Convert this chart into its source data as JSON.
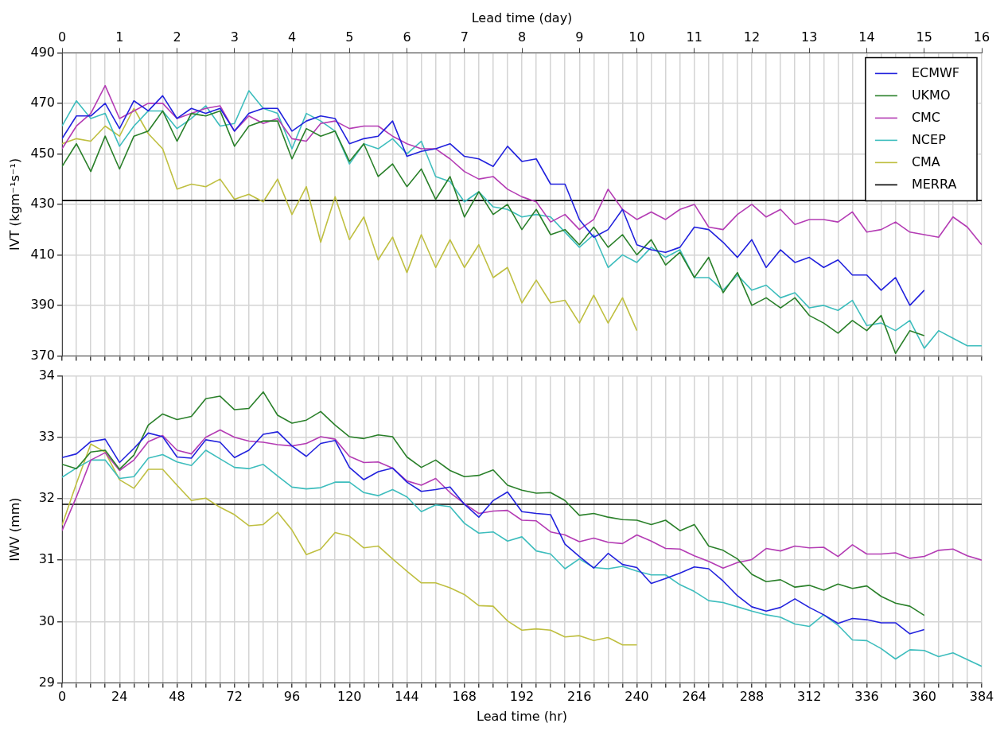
{
  "chart_data": [
    {
      "type": "line",
      "ylabel": "IVT (kgm⁻¹s⁻¹)",
      "x2label": "Lead time (day)",
      "x2lim": [
        0,
        16
      ],
      "x2ticks": [
        0,
        1,
        2,
        3,
        4,
        5,
        6,
        7,
        8,
        9,
        10,
        11,
        12,
        13,
        14,
        15,
        16
      ],
      "xlim": [
        0,
        384
      ],
      "ylim": [
        370,
        490
      ],
      "yticks": [
        370,
        390,
        410,
        430,
        450,
        470,
        490
      ],
      "grid": true,
      "legend": "top right",
      "tick_labels": "y",
      "xticks": [
        0,
        {
          "value": 6,
          "label": null
        },
        {
          "value": 12,
          "label": null
        },
        {
          "value": 18,
          "label": null
        },
        24,
        {
          "value": 30,
          "label": null
        },
        {
          "value": 36,
          "label": null
        },
        {
          "value": 42,
          "label": null
        },
        48,
        {
          "value": 54,
          "label": null
        },
        {
          "value": 60,
          "label": null
        },
        {
          "value": 66,
          "label": null
        },
        72,
        {
          "value": 78,
          "label": null
        },
        {
          "value": 84,
          "label": null
        },
        {
          "value": 90,
          "label": null
        },
        96,
        {
          "value": 102,
          "label": null
        },
        {
          "value": 108,
          "label": null
        },
        {
          "value": 114,
          "label": null
        },
        120,
        {
          "value": 126,
          "label": null
        },
        {
          "value": 132,
          "label": null
        },
        {
          "value": 138,
          "label": null
        },
        144,
        {
          "value": 150,
          "label": null
        },
        {
          "value": 156,
          "label": null
        },
        {
          "value": 162,
          "label": null
        },
        168,
        {
          "value": 174,
          "label": null
        },
        {
          "value": 180,
          "label": null
        },
        {
          "value": 186,
          "label": null
        },
        192,
        {
          "value": 198,
          "label": null
        },
        {
          "value": 204,
          "label": null
        },
        {
          "value": 210,
          "label": null
        },
        216,
        {
          "value": 222,
          "label": null
        },
        {
          "value": 228,
          "label": null
        },
        {
          "value": 234,
          "label": null
        },
        240,
        {
          "value": 246,
          "label": null
        },
        {
          "value": 252,
          "label": null
        },
        {
          "value": 258,
          "label": null
        },
        264,
        {
          "value": 270,
          "label": null
        },
        {
          "value": 276,
          "label": null
        },
        {
          "value": 282,
          "label": null
        },
        288,
        {
          "value": 294,
          "label": null
        },
        {
          "value": 300,
          "label": null
        },
        {
          "value": 306,
          "label": null
        },
        312,
        {
          "value": 318,
          "label": null
        },
        {
          "value": 324,
          "label": null
        },
        {
          "value": 330,
          "label": null
        },
        336,
        {
          "value": 342,
          "label": null
        },
        {
          "value": 348,
          "label": null
        },
        {
          "value": 354,
          "label": null
        },
        360,
        {
          "value": 366,
          "label": null
        },
        {
          "value": 372,
          "label": null
        },
        {
          "value": 378,
          "label": null
        },
        384
      ],
      "x": [
        0,
        6,
        12,
        18,
        24,
        30,
        36,
        42,
        48,
        54,
        60,
        66,
        72,
        78,
        84,
        90,
        96,
        102,
        108,
        114,
        120,
        126,
        132,
        138,
        144,
        150,
        156,
        162,
        168,
        174,
        180,
        186,
        192,
        198,
        204,
        210,
        216,
        222,
        228,
        234,
        240,
        246,
        252,
        258,
        264,
        270,
        276,
        282,
        288,
        294,
        300,
        306,
        312,
        318,
        324,
        330,
        336,
        342,
        348,
        354,
        360,
        366,
        372,
        378,
        384
      ],
      "series": [
        {
          "name": "ECMWF",
          "color": "#2222dd",
          "x": [
            0,
            6,
            12,
            18,
            24,
            30,
            36,
            42,
            48,
            54,
            60,
            66,
            72,
            78,
            84,
            90,
            96,
            102,
            108,
            114,
            120,
            126,
            132,
            138,
            144,
            150,
            156,
            162,
            168,
            174,
            180,
            186,
            192,
            198,
            204,
            210,
            216,
            222,
            228,
            234,
            240,
            246,
            252,
            258,
            264,
            270,
            276,
            282,
            288,
            294,
            300,
            306,
            312,
            318,
            324,
            330,
            336,
            342,
            348,
            354,
            360
          ],
          "values": [
            456,
            465,
            465,
            470,
            460,
            471,
            467,
            473,
            464,
            468,
            466,
            468,
            459,
            466,
            468,
            468,
            459,
            463,
            465,
            464,
            454,
            456,
            457,
            463,
            449,
            451,
            452,
            454,
            449,
            448,
            445,
            453,
            447,
            448,
            438,
            438,
            424,
            417,
            420,
            428,
            414,
            412,
            411,
            413,
            421,
            420,
            415,
            409,
            416,
            405,
            412,
            407,
            409,
            405,
            408,
            402,
            402,
            396,
            401,
            390,
            396
          ]
        },
        {
          "name": "UKMO",
          "color": "#2a802a",
          "x": [
            0,
            6,
            12,
            18,
            24,
            30,
            36,
            42,
            48,
            54,
            60,
            66,
            72,
            78,
            84,
            90,
            96,
            102,
            108,
            114,
            120,
            126,
            132,
            138,
            144,
            150,
            156,
            162,
            168,
            174,
            180,
            186,
            192,
            198,
            204,
            210,
            216,
            222,
            228,
            234,
            240,
            246,
            252,
            258,
            264,
            270,
            276,
            282,
            288,
            294,
            300,
            306,
            312,
            318,
            324,
            330,
            336,
            342,
            348,
            354,
            360
          ],
          "values": [
            445,
            454,
            443,
            457,
            444,
            457,
            459,
            467,
            455,
            466,
            465,
            467,
            453,
            461,
            463,
            463,
            448,
            460,
            457,
            459,
            447,
            454,
            441,
            446,
            437,
            444,
            432,
            441,
            425,
            435,
            426,
            430,
            420,
            428,
            418,
            420,
            414,
            421,
            413,
            418,
            410,
            416,
            406,
            411,
            401,
            409,
            395,
            403,
            390,
            393,
            389,
            393,
            386,
            383,
            379,
            384,
            380,
            386,
            371,
            380,
            378
          ]
        },
        {
          "name": "CMC",
          "color": "#b43cb4",
          "values": [
            452,
            461,
            466,
            477,
            464,
            467,
            470,
            470,
            464,
            466,
            468,
            469,
            459,
            465,
            462,
            464,
            456,
            455,
            462,
            463,
            460,
            461,
            461,
            457,
            454,
            452,
            452,
            448,
            443,
            440,
            441,
            436,
            433,
            431,
            423,
            426,
            420,
            424,
            436,
            428,
            424,
            427,
            424,
            428,
            430,
            421,
            420,
            426,
            430,
            425,
            428,
            422,
            424,
            424,
            423,
            427,
            419,
            420,
            423,
            419,
            418,
            417,
            425,
            421,
            414
          ]
        },
        {
          "name": "NCEP",
          "color": "#3dbdbd",
          "values": [
            461,
            471,
            464,
            466,
            453,
            461,
            467,
            467,
            460,
            464,
            469,
            461,
            462,
            475,
            468,
            466,
            452,
            466,
            463,
            459,
            446,
            454,
            452,
            456,
            450,
            455,
            441,
            439,
            431,
            435,
            429,
            428,
            425,
            426,
            425,
            419,
            413,
            418,
            405,
            410,
            407,
            413,
            409,
            412,
            401,
            401,
            396,
            402,
            396,
            398,
            393,
            395,
            389,
            390,
            388,
            392,
            382,
            383,
            380,
            384,
            373,
            380,
            377,
            374,
            374
          ]
        },
        {
          "name": "CMA",
          "color": "#bfbf40",
          "x": [
            0,
            6,
            12,
            18,
            24,
            30,
            36,
            42,
            48,
            54,
            60,
            66,
            72,
            78,
            84,
            90,
            96,
            102,
            108,
            114,
            120,
            126,
            132,
            138,
            144,
            150,
            156,
            162,
            168,
            174,
            180,
            186,
            192,
            198,
            204,
            210,
            216,
            222,
            228,
            234,
            240
          ],
          "values": [
            454,
            456,
            455,
            461,
            457,
            468,
            458,
            452,
            436,
            438,
            437,
            440,
            432,
            434,
            431,
            440,
            426,
            437,
            415,
            433,
            416,
            425,
            408,
            417,
            403,
            418,
            405,
            416,
            405,
            414,
            401,
            405,
            391,
            400,
            391,
            392,
            383,
            394,
            383,
            393,
            380
          ]
        },
        {
          "name": "MERRA",
          "color": "#000000",
          "values": [
            431.5,
            431.5,
            431.5,
            431.5,
            431.5,
            431.5,
            431.5,
            431.5,
            431.5,
            431.5,
            431.5,
            431.5,
            431.5,
            431.5,
            431.5,
            431.5,
            431.5,
            431.5,
            431.5,
            431.5,
            431.5,
            431.5,
            431.5,
            431.5,
            431.5,
            431.5,
            431.5,
            431.5,
            431.5,
            431.5,
            431.5,
            431.5,
            431.5,
            431.5,
            431.5,
            431.5,
            431.5,
            431.5,
            431.5,
            431.5,
            431.5,
            431.5,
            431.5,
            431.5,
            431.5,
            431.5,
            431.5,
            431.5,
            431.5,
            431.5,
            431.5,
            431.5,
            431.5,
            431.5,
            431.5,
            431.5,
            431.5,
            431.5,
            431.5,
            431.5,
            431.5,
            431.5,
            431.5,
            431.5,
            431.5
          ]
        }
      ]
    },
    {
      "type": "line",
      "xlabel": "Lead time (hr)",
      "ylabel": "IWV (mm)",
      "xlim": [
        0,
        384
      ],
      "ylim": [
        29,
        34
      ],
      "yticks": [
        29,
        30,
        31,
        32,
        33,
        34
      ],
      "grid": true,
      "xticks": [
        0,
        {
          "value": 6,
          "label": null
        },
        {
          "value": 12,
          "label": null
        },
        {
          "value": 18,
          "label": null
        },
        24,
        {
          "value": 30,
          "label": null
        },
        {
          "value": 36,
          "label": null
        },
        {
          "value": 42,
          "label": null
        },
        48,
        {
          "value": 54,
          "label": null
        },
        {
          "value": 60,
          "label": null
        },
        {
          "value": 66,
          "label": null
        },
        72,
        {
          "value": 78,
          "label": null
        },
        {
          "value": 84,
          "label": null
        },
        {
          "value": 90,
          "label": null
        },
        96,
        {
          "value": 102,
          "label": null
        },
        {
          "value": 108,
          "label": null
        },
        {
          "value": 114,
          "label": null
        },
        120,
        {
          "value": 126,
          "label": null
        },
        {
          "value": 132,
          "label": null
        },
        {
          "value": 138,
          "label": null
        },
        144,
        {
          "value": 150,
          "label": null
        },
        {
          "value": 156,
          "label": null
        },
        {
          "value": 162,
          "label": null
        },
        168,
        {
          "value": 174,
          "label": null
        },
        {
          "value": 180,
          "label": null
        },
        {
          "value": 186,
          "label": null
        },
        192,
        {
          "value": 198,
          "label": null
        },
        {
          "value": 204,
          "label": null
        },
        {
          "value": 210,
          "label": null
        },
        216,
        {
          "value": 222,
          "label": null
        },
        {
          "value": 228,
          "label": null
        },
        {
          "value": 234,
          "label": null
        },
        240,
        {
          "value": 246,
          "label": null
        },
        {
          "value": 252,
          "label": null
        },
        {
          "value": 258,
          "label": null
        },
        264,
        {
          "value": 270,
          "label": null
        },
        {
          "value": 276,
          "label": null
        },
        {
          "value": 282,
          "label": null
        },
        288,
        {
          "value": 294,
          "label": null
        },
        {
          "value": 300,
          "label": null
        },
        {
          "value": 306,
          "label": null
        },
        312,
        {
          "value": 318,
          "label": null
        },
        {
          "value": 324,
          "label": null
        },
        {
          "value": 330,
          "label": null
        },
        336,
        {
          "value": 342,
          "label": null
        },
        {
          "value": 348,
          "label": null
        },
        {
          "value": 354,
          "label": null
        },
        360,
        {
          "value": 366,
          "label": null
        },
        {
          "value": 372,
          "label": null
        },
        {
          "value": 378,
          "label": null
        },
        384
      ],
      "x": [
        0,
        6,
        12,
        18,
        24,
        30,
        36,
        42,
        48,
        54,
        60,
        66,
        72,
        78,
        84,
        90,
        96,
        102,
        108,
        114,
        120,
        126,
        132,
        138,
        144,
        150,
        156,
        162,
        168,
        174,
        180,
        186,
        192,
        198,
        204,
        210,
        216,
        222,
        228,
        234,
        240,
        246,
        252,
        258,
        264,
        270,
        276,
        282,
        288,
        294,
        300,
        306,
        312,
        318,
        324,
        330,
        336,
        342,
        348,
        354,
        360,
        366,
        372,
        378,
        384
      ],
      "series": [
        {
          "color": "#2222dd",
          "x": [
            0,
            6,
            12,
            18,
            24,
            30,
            36,
            42,
            48,
            54,
            60,
            66,
            72,
            78,
            84,
            90,
            96,
            102,
            108,
            114,
            120,
            126,
            132,
            138,
            144,
            150,
            156,
            162,
            168,
            174,
            180,
            186,
            192,
            198,
            204,
            210,
            216,
            222,
            228,
            234,
            240,
            246,
            252,
            258,
            264,
            270,
            276,
            282,
            288,
            294,
            300,
            306,
            312,
            318,
            324,
            330,
            336,
            342,
            348,
            354,
            360
          ],
          "values": [
            32.67,
            32.73,
            32.93,
            32.97,
            32.59,
            32.82,
            33.07,
            33.01,
            32.68,
            32.66,
            32.96,
            32.92,
            32.67,
            32.79,
            33.05,
            33.09,
            32.86,
            32.69,
            32.9,
            32.95,
            32.51,
            32.31,
            32.44,
            32.5,
            32.27,
            32.12,
            32.15,
            32.19,
            31.91,
            31.7,
            31.97,
            32.11,
            31.79,
            31.76,
            31.74,
            31.26,
            31.06,
            30.87,
            31.11,
            30.93,
            30.88,
            30.62,
            30.7,
            30.79,
            30.89,
            30.86,
            30.66,
            30.42,
            30.24,
            30.17,
            30.23,
            30.37,
            30.23,
            30.11,
            29.97,
            30.05,
            30.03,
            29.98,
            29.98,
            29.8,
            29.87
          ]
        },
        {
          "color": "#2a802a",
          "x": [
            0,
            6,
            12,
            18,
            24,
            30,
            36,
            42,
            48,
            54,
            60,
            66,
            72,
            78,
            84,
            90,
            96,
            102,
            108,
            114,
            120,
            126,
            132,
            138,
            144,
            150,
            156,
            162,
            168,
            174,
            180,
            186,
            192,
            198,
            204,
            210,
            216,
            222,
            228,
            234,
            240,
            246,
            252,
            258,
            264,
            270,
            276,
            282,
            288,
            294,
            300,
            306,
            312,
            318,
            324,
            330,
            336,
            342,
            348,
            354,
            360
          ],
          "values": [
            32.56,
            32.49,
            32.76,
            32.79,
            32.48,
            32.71,
            33.2,
            33.38,
            33.29,
            33.34,
            33.63,
            33.67,
            33.45,
            33.47,
            33.74,
            33.36,
            33.23,
            33.28,
            33.42,
            33.2,
            33.01,
            32.98,
            33.04,
            33.01,
            32.68,
            32.51,
            32.63,
            32.46,
            32.36,
            32.38,
            32.47,
            32.22,
            32.14,
            32.09,
            32.1,
            31.97,
            31.73,
            31.76,
            31.7,
            31.66,
            31.65,
            31.58,
            31.65,
            31.48,
            31.58,
            31.23,
            31.16,
            31.02,
            30.77,
            30.65,
            30.68,
            30.56,
            30.59,
            30.51,
            30.61,
            30.54,
            30.58,
            30.41,
            30.3,
            30.25,
            30.1
          ]
        },
        {
          "color": "#b43cb4",
          "values": [
            31.48,
            32.03,
            32.63,
            32.75,
            32.46,
            32.63,
            32.93,
            33.03,
            32.79,
            32.73,
            33,
            33.12,
            33,
            32.94,
            32.92,
            32.88,
            32.86,
            32.9,
            33.01,
            32.97,
            32.69,
            32.59,
            32.6,
            32.5,
            32.29,
            32.22,
            32.33,
            32.1,
            31.92,
            31.76,
            31.8,
            31.81,
            31.65,
            31.64,
            31.46,
            31.41,
            31.3,
            31.36,
            31.29,
            31.27,
            31.41,
            31.31,
            31.19,
            31.18,
            31.07,
            30.98,
            30.87,
            30.96,
            31.01,
            31.19,
            31.15,
            31.23,
            31.2,
            31.21,
            31.06,
            31.25,
            31.1,
            31.1,
            31.12,
            31.03,
            31.06,
            31.16,
            31.18,
            31.07,
            31
          ]
        },
        {
          "color": "#3dbdbd",
          "values": [
            32.35,
            32.5,
            32.63,
            32.63,
            32.33,
            32.36,
            32.66,
            32.72,
            32.6,
            32.54,
            32.79,
            32.65,
            32.51,
            32.49,
            32.56,
            32.37,
            32.19,
            32.16,
            32.18,
            32.27,
            32.27,
            32.1,
            32.05,
            32.15,
            32.03,
            31.79,
            31.9,
            31.87,
            31.6,
            31.44,
            31.46,
            31.31,
            31.38,
            31.15,
            31.1,
            30.86,
            31.02,
            30.88,
            30.86,
            30.9,
            30.82,
            30.76,
            30.76,
            30.6,
            30.49,
            30.34,
            30.31,
            30.24,
            30.17,
            30.11,
            30.07,
            29.96,
            29.92,
            30.11,
            29.94,
            29.7,
            29.69,
            29.56,
            29.39,
            29.54,
            29.53,
            29.43,
            29.49,
            29.38,
            29.27
          ]
        },
        {
          "color": "#bfbf40",
          "x": [
            0,
            6,
            12,
            18,
            24,
            30,
            36,
            42,
            48,
            54,
            60,
            66,
            72,
            78,
            84,
            90,
            96,
            102,
            108,
            114,
            120,
            126,
            132,
            138,
            144,
            150,
            156,
            162,
            168,
            174,
            180,
            186,
            192,
            198,
            204,
            210,
            216,
            222,
            228,
            234,
            240
          ],
          "values": [
            31.57,
            32.25,
            32.89,
            32.76,
            32.31,
            32.17,
            32.48,
            32.48,
            32.22,
            31.97,
            32.01,
            31.86,
            31.74,
            31.56,
            31.58,
            31.78,
            31.49,
            31.09,
            31.18,
            31.45,
            31.39,
            31.2,
            31.23,
            31.02,
            30.82,
            30.63,
            30.63,
            30.55,
            30.44,
            30.26,
            30.25,
            30.01,
            29.86,
            29.88,
            29.86,
            29.75,
            29.77,
            29.69,
            29.74,
            29.62,
            29.62
          ]
        },
        {
          "color": "#000000",
          "values": [
            31.91,
            31.91,
            31.91,
            31.91,
            31.91,
            31.91,
            31.91,
            31.91,
            31.91,
            31.91,
            31.91,
            31.91,
            31.91,
            31.91,
            31.91,
            31.91,
            31.91,
            31.91,
            31.91,
            31.91,
            31.91,
            31.91,
            31.91,
            31.91,
            31.91,
            31.91,
            31.91,
            31.91,
            31.91,
            31.91,
            31.91,
            31.91,
            31.91,
            31.91,
            31.91,
            31.91,
            31.91,
            31.91,
            31.91,
            31.91,
            31.91,
            31.91,
            31.91,
            31.91,
            31.91,
            31.91,
            31.91,
            31.91,
            31.91,
            31.91,
            31.91,
            31.91,
            31.91,
            31.91,
            31.91,
            31.91,
            31.91,
            31.91,
            31.91,
            31.91,
            31.91,
            31.91,
            31.91,
            31.91,
            31.91
          ]
        }
      ]
    }
  ]
}
